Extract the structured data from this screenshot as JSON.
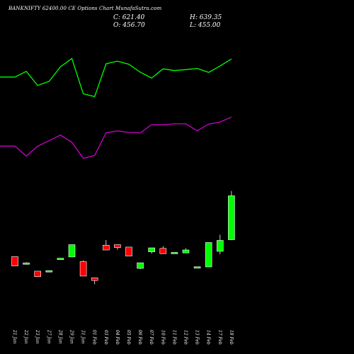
{
  "header": {
    "title": "BANKNIFTY 62400.00 CE Options Chart MunafaSutra.com",
    "close": "C: 621.40",
    "high": "H: 639.35",
    "open": "O: 456.70",
    "low": "L: 455.00"
  },
  "colors": {
    "background": "#000000",
    "up": "#00ff00",
    "down": "#ff0000",
    "upper_line": "#00ff00",
    "lower_line": "#cc00cc",
    "axis_text": "#ffffff"
  },
  "chart_data": {
    "type": "candlestick",
    "dates": [
      "21 Jan",
      "22 Jan",
      "23 Jan",
      "27 Jan",
      "28 Jan",
      "29 Jan",
      "31 Jan",
      "01 Feb",
      "03 Feb",
      "04 Feb",
      "05 Feb",
      "06 Feb",
      "07 Feb",
      "10 Feb",
      "11 Feb",
      "12 Feb",
      "13 Feb",
      "14 Feb",
      "17 Feb",
      "18 Feb"
    ],
    "candles": [
      {
        "open": 393.0,
        "high": 393.0,
        "low": 358.0,
        "close": 358.0,
        "dir": "down"
      },
      {
        "open": 366.5,
        "high": 372.0,
        "low": 364.5,
        "close": 369.5,
        "dir": "up"
      },
      {
        "open": 338.5,
        "high": 338.5,
        "low": 318.0,
        "close": 318.0,
        "dir": "down"
      },
      {
        "open": 339.0,
        "high": 340.5,
        "low": 339.0,
        "close": 340.5,
        "dir": "up"
      },
      {
        "open": 384.0,
        "high": 387.0,
        "low": 384.0,
        "close": 387.0,
        "dir": "up"
      },
      {
        "open": 392.0,
        "high": 438.0,
        "low": 392.0,
        "close": 438.0,
        "dir": "up"
      },
      {
        "open": 374.5,
        "high": 379.0,
        "low": 320.0,
        "close": 320.0,
        "dir": "down"
      },
      {
        "open": 313.5,
        "high": 313.5,
        "low": 289.5,
        "close": 303.5,
        "dir": "down"
      },
      {
        "open": 436.0,
        "high": 455.0,
        "low": 418.0,
        "close": 418.0,
        "dir": "down"
      },
      {
        "open": 438.0,
        "high": 438.0,
        "low": 419.0,
        "close": 427.0,
        "dir": "down"
      },
      {
        "open": 429.0,
        "high": 429.0,
        "low": 395.0,
        "close": 395.0,
        "dir": "down"
      },
      {
        "open": 349.0,
        "high": 370.0,
        "low": 346.0,
        "close": 370.0,
        "dir": "up"
      },
      {
        "open": 411.0,
        "high": 426.0,
        "low": 405.0,
        "close": 426.0,
        "dir": "up"
      },
      {
        "open": 424.0,
        "high": 432.0,
        "low": 404.0,
        "close": 404.0,
        "dir": "down"
      },
      {
        "open": 404.0,
        "high": 409.0,
        "low": 404.0,
        "close": 409.0,
        "dir": "up"
      },
      {
        "open": 407.0,
        "high": 424.0,
        "low": 407.0,
        "close": 418.0,
        "dir": "up"
      },
      {
        "open": 353.0,
        "high": 355.0,
        "low": 353.0,
        "close": 355.0,
        "dir": "up"
      },
      {
        "open": 354.5,
        "high": 446.0,
        "low": 354.5,
        "close": 446.0,
        "dir": "up"
      },
      {
        "open": 413.0,
        "high": 475.0,
        "low": 402.0,
        "close": 454.0,
        "dir": "up"
      },
      {
        "open": 456.7,
        "high": 639.35,
        "low": 455.0,
        "close": 621.4,
        "dir": "up"
      }
    ],
    "upper_line": [
      1070,
      1070,
      1098,
      1028,
      1048,
      1121,
      1162,
      986,
      972,
      1136,
      1149,
      1134,
      1094,
      1065,
      1111,
      1102,
      1107,
      1113,
      1093,
      1125,
      1160
    ],
    "lower_line": [
      725,
      725,
      675,
      724,
      752,
      780,
      744,
      663,
      678,
      791,
      801,
      793,
      791,
      832,
      831,
      836,
      836,
      801,
      835,
      845,
      870
    ],
    "ylim_candles": [
      280,
      660
    ],
    "ylim_lines": [
      620,
      1200
    ],
    "grid": false,
    "legend": "none"
  }
}
